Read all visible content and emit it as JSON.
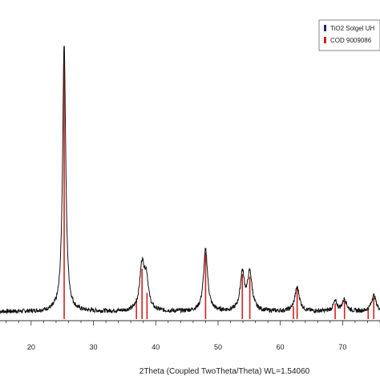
{
  "chart_data": {
    "type": "line",
    "xlabel": "2Theta (Coupled TwoTheta/Theta) WL=1.54060",
    "ylabel": "",
    "xlim": [
      15,
      76
    ],
    "ylim": [
      0,
      100
    ],
    "xticks": [
      20,
      30,
      40,
      50,
      60,
      70
    ],
    "grid": false,
    "legend_position": "top-right",
    "legend": [
      {
        "label": "TiO2 Solgel UH",
        "color": "#1a2a66"
      },
      {
        "label": "COD 9009086",
        "color": "#d42020"
      }
    ],
    "series": [
      {
        "name": "TiO2 Solgel UH",
        "color": "#111111",
        "peaks": [
          {
            "x": 25.3,
            "height": 100,
            "width": 0.3
          },
          {
            "x": 37.8,
            "height": 17,
            "width": 0.45
          },
          {
            "x": 38.5,
            "height": 11,
            "width": 0.4
          },
          {
            "x": 48.0,
            "height": 23,
            "width": 0.4
          },
          {
            "x": 53.9,
            "height": 14,
            "width": 0.4
          },
          {
            "x": 55.1,
            "height": 14,
            "width": 0.45
          },
          {
            "x": 62.7,
            "height": 9,
            "width": 0.45
          },
          {
            "x": 68.8,
            "height": 3.5,
            "width": 0.4
          },
          {
            "x": 70.3,
            "height": 4.5,
            "width": 0.4
          },
          {
            "x": 75.0,
            "height": 6,
            "width": 0.45
          }
        ],
        "baseline": 1
      }
    ],
    "reference": {
      "name": "COD 9009086",
      "color": "#d42020",
      "lines": [
        {
          "x": 25.3,
          "height": 100
        },
        {
          "x": 36.9,
          "height": 6
        },
        {
          "x": 37.8,
          "height": 17
        },
        {
          "x": 38.6,
          "height": 8
        },
        {
          "x": 48.0,
          "height": 23
        },
        {
          "x": 53.9,
          "height": 15
        },
        {
          "x": 55.1,
          "height": 14
        },
        {
          "x": 62.1,
          "height": 3
        },
        {
          "x": 62.7,
          "height": 10
        },
        {
          "x": 68.8,
          "height": 4
        },
        {
          "x": 70.3,
          "height": 5
        },
        {
          "x": 74.1,
          "height": 2
        },
        {
          "x": 75.0,
          "height": 6
        }
      ]
    }
  }
}
